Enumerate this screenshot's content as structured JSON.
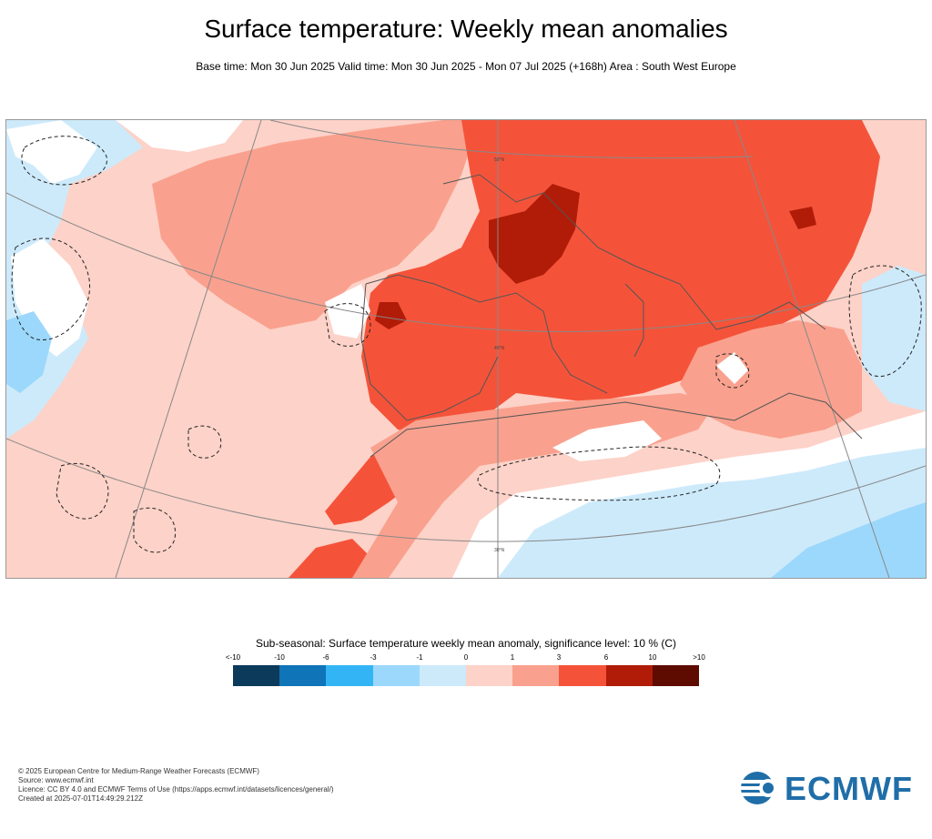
{
  "title": "Surface temperature: Weekly mean anomalies",
  "subtitle": "Base time: Mon 30 Jun 2025 Valid time: Mon 30 Jun 2025 - Mon 07 Jul 2025 (+168h) Area : South West Europe",
  "map": {
    "graticule_labels": [
      "50°N",
      "40°N",
      "30°N"
    ]
  },
  "legend": {
    "title": "Sub-seasonal: Surface temperature weekly mean anomaly, significance level: 10 % (C)",
    "tick_labels": [
      "<-10",
      "-10",
      "-6",
      "-3",
      "-1",
      "0",
      "1",
      "3",
      "6",
      "10",
      ">10"
    ],
    "colors": [
      "#0b3a5a",
      "#0f74b8",
      "#33b5f5",
      "#9cd8fb",
      "#cdeafb",
      "#fdd2c8",
      "#f9a18e",
      "#f4533a",
      "#b01c08",
      "#5e0b02"
    ]
  },
  "footer": {
    "copyright": "© 2025 European Centre for Medium-Range Weather Forecasts (ECMWF)",
    "source": "Source: www.ecmwf.int",
    "licence": "Licence: CC BY 4.0 and ECMWF Terms of Use (https://apps.ecmwf.int/datasets/licences/general/)",
    "created": "Created at 2025-07-01T14:49:29.212Z"
  },
  "logo": {
    "text": "ECMWF",
    "color": "#1f6ea8"
  }
}
